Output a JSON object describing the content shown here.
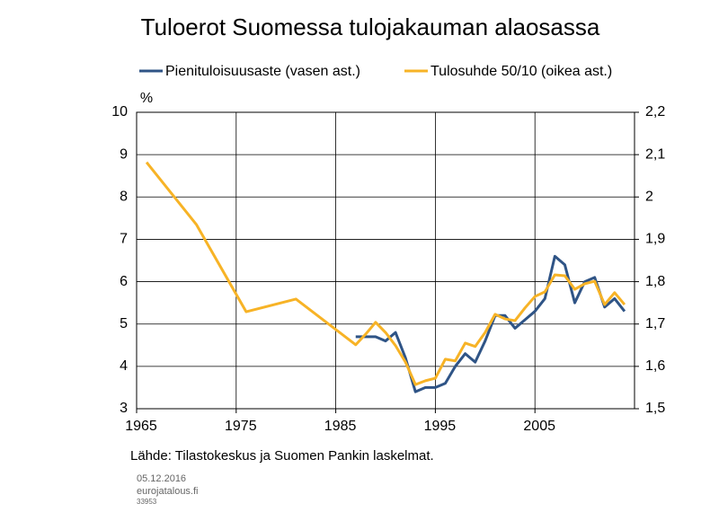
{
  "chart_data": {
    "type": "line",
    "title": "Tuloerot Suomessa tulojakauman alaosassa",
    "y_label": "%",
    "source": "Lähde: Tilastokeskus ja Suomen Pankin laskelmat.",
    "date": "05.12.2016",
    "site": "eurojatalous.fi",
    "code": "33953",
    "xlim": [
      1965,
      2015
    ],
    "xticks": [
      1965,
      1975,
      1985,
      1995,
      2005
    ],
    "ylim": [
      3,
      10
    ],
    "yticks": [
      3,
      4,
      5,
      6,
      7,
      8,
      9,
      10
    ],
    "y2lim": [
      1.5,
      2.2
    ],
    "y2ticks": [
      {
        "value": 1.5,
        "label": "1,5"
      },
      {
        "value": 1.6,
        "label": "1,6"
      },
      {
        "value": 1.7,
        "label": "1,7"
      },
      {
        "value": 1.8,
        "label": "1,8"
      },
      {
        "value": 1.9,
        "label": "1,9"
      },
      2,
      {
        "value": 2.1,
        "label": "2,1"
      },
      {
        "value": 2.2,
        "label": "2,2"
      }
    ],
    "grid": true,
    "series": [
      {
        "name": "Pienituloisuusaste (vasen ast.)",
        "color": "#2f5486",
        "x": [
          1987,
          1988,
          1989,
          1990,
          1991,
          1992,
          1993,
          1994,
          1995,
          1996,
          1997,
          1998,
          1999,
          2000,
          2001,
          2002,
          2003,
          2004,
          2005,
          2006,
          2007,
          2008,
          2009,
          2010,
          2011,
          2012,
          2013,
          2014
        ],
        "values": [
          4.7,
          4.7,
          4.7,
          4.6,
          4.8,
          4.2,
          3.4,
          3.5,
          3.5,
          3.6,
          4.0,
          4.3,
          4.1,
          4.6,
          5.2,
          5.2,
          4.9,
          5.1,
          5.3,
          5.6,
          6.6,
          6.4,
          5.5,
          6.0,
          6.1,
          5.4,
          5.6,
          5.3
        ]
      },
      {
        "name": "Tulosuhde 50/10 (oikea ast.)",
        "color": "#f7b326",
        "axis": "y2",
        "x": [
          1966,
          1971,
          1976,
          1981,
          1987,
          1988,
          1989,
          1990,
          1991,
          1992,
          1993,
          1994,
          1995,
          1996,
          1997,
          1998,
          1999,
          2000,
          2001,
          2002,
          2003,
          2004,
          2005,
          2006,
          2007,
          2008,
          2009,
          2010,
          2011,
          2012,
          2013,
          2014
        ],
        "values": [
          2.082,
          1.935,
          1.729,
          1.759,
          1.651,
          1.676,
          1.704,
          1.68,
          1.649,
          1.61,
          1.557,
          1.566,
          1.572,
          1.617,
          1.613,
          1.655,
          1.647,
          1.68,
          1.723,
          1.712,
          1.708,
          1.738,
          1.765,
          1.776,
          1.816,
          1.814,
          1.782,
          1.795,
          1.801,
          1.746,
          1.774,
          1.746
        ]
      }
    ]
  }
}
